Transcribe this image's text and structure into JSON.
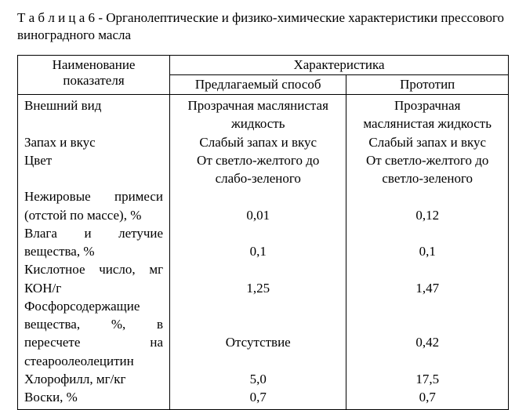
{
  "caption_prefix": "Т а б л и ц а 6",
  "caption_rest": " - Органолептические и физико-химические характеристики прессового виноградного масла",
  "headers": {
    "name": "Наименование показателя",
    "char": "Характеристика",
    "proposed": "Предлагаемый способ",
    "prototype": "Прототип"
  },
  "rows": [
    {
      "label": "Внешний вид",
      "v1a": "Прозрачная маслянистая",
      "v1b": "жидкость",
      "v2a": "Прозрачная",
      "v2b": "маслянистая жидкость"
    },
    {
      "label": "Запах и вкус",
      "v1": "Слабый запах и вкус",
      "v2": "Слабый запах и вкус"
    },
    {
      "label": "Цвет",
      "v1a": "От светло-желтого до",
      "v1b": "слабо-зеленого",
      "v2a": "От светло-желтого до",
      "v2b": "светло-зеленого"
    },
    {
      "label_a": "Нежировые",
      "label_b": "примеси",
      "label_c": "(отстой по массе), %",
      "v1": "0,01",
      "v2": "0,12"
    },
    {
      "label_a": "Влага",
      "label_b": "и",
      "label_c": "летучие",
      "label_d": "вещества, %",
      "v1": "0,1",
      "v2": "0,1"
    },
    {
      "label_a": "Кислотное",
      "label_b": "число,",
      "label_c": "мг",
      "label_d": "КОН/г",
      "v1": "1,25",
      "v2": "1,47"
    },
    {
      "label_a": "Фосфорсодержащие",
      "label_b1": "вещества,",
      "label_b2": "%,",
      "label_b3": "в",
      "label_c1": "пересчете",
      "label_c2": "на",
      "label_d": "стеароолеолецитин",
      "v1": "Отсутствие",
      "v2": "0,42"
    },
    {
      "label": "Хлорофилл, мг/кг",
      "v1": "5,0",
      "v2": "17,5"
    },
    {
      "label": "Воски, %",
      "v1": "0,7",
      "v2": "0,7"
    }
  ]
}
